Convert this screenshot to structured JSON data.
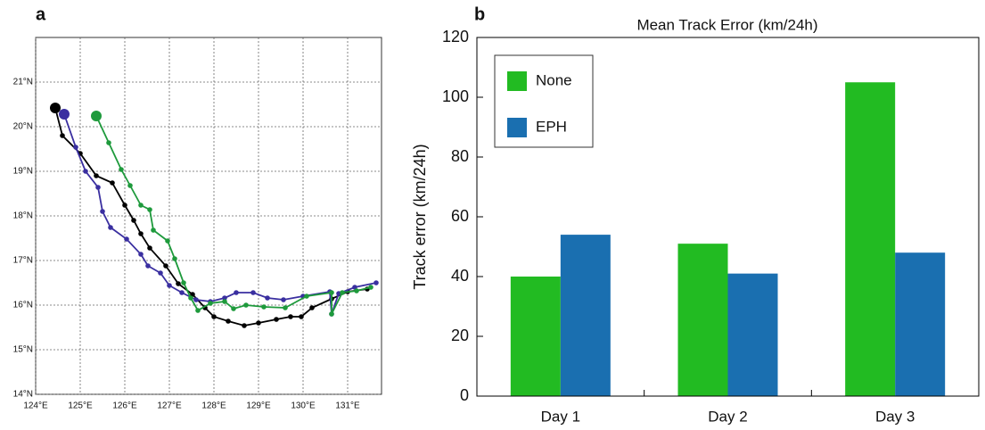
{
  "chart_data": [
    {
      "type": "line",
      "panel_label": "a",
      "xlim": [
        124,
        131.76
      ],
      "ylim": [
        14,
        22
      ],
      "grid": true,
      "xticks": [
        {
          "value": 124,
          "label": "124°E"
        },
        {
          "value": 125,
          "label": "125°E"
        },
        {
          "value": 126,
          "label": "126°E"
        },
        {
          "value": 127,
          "label": "127°E"
        },
        {
          "value": 128,
          "label": "128°E"
        },
        {
          "value": 129,
          "label": "129°E"
        },
        {
          "value": 130,
          "label": "130°E"
        },
        {
          "value": 131,
          "label": "131°E"
        }
      ],
      "yticks": [
        {
          "value": 14,
          "label": "14°N"
        },
        {
          "value": 15,
          "label": "15°N"
        },
        {
          "value": 16,
          "label": "16°N"
        },
        {
          "value": 17,
          "label": "17°N"
        },
        {
          "value": 18,
          "label": "18°N"
        },
        {
          "value": 19,
          "label": "19°N"
        },
        {
          "value": 20,
          "label": "20°N"
        },
        {
          "value": 21,
          "label": "21°N"
        }
      ],
      "series": [
        {
          "color": "#000000",
          "x": [
            124.44,
            124.6,
            125.0,
            125.36,
            125.72,
            126.0,
            126.2,
            126.36,
            126.56,
            126.92,
            127.2,
            127.52,
            127.8,
            128.0,
            128.32,
            128.68,
            129.0,
            129.4,
            129.72,
            129.96,
            130.2,
            130.64,
            131.0,
            131.44
          ],
          "values": [
            20.42,
            19.8,
            19.4,
            18.9,
            18.74,
            18.24,
            17.9,
            17.6,
            17.28,
            16.88,
            16.48,
            16.24,
            15.94,
            15.74,
            15.64,
            15.54,
            15.6,
            15.68,
            15.74,
            15.74,
            15.94,
            16.14,
            16.3,
            16.36
          ]
        },
        {
          "color": "#3a2fa0",
          "x": [
            124.64,
            124.9,
            125.12,
            125.4,
            125.5,
            125.68,
            126.04,
            126.36,
            126.52,
            126.8,
            127.0,
            127.28,
            127.6,
            127.92,
            128.24,
            128.5,
            128.88,
            129.2,
            129.56,
            130.0,
            130.6,
            130.64,
            130.8,
            131.16,
            131.64
          ],
          "values": [
            20.28,
            19.54,
            19.0,
            18.64,
            18.1,
            17.74,
            17.48,
            17.14,
            16.88,
            16.72,
            16.44,
            16.28,
            16.12,
            16.08,
            16.16,
            16.28,
            16.28,
            16.16,
            16.12,
            16.2,
            16.3,
            15.8,
            16.26,
            16.4,
            16.5
          ]
        },
        {
          "color": "#1e9a3c",
          "x": [
            125.36,
            125.64,
            125.92,
            126.12,
            126.36,
            126.56,
            126.64,
            126.96,
            127.12,
            127.32,
            127.48,
            127.64,
            127.92,
            128.24,
            128.44,
            128.72,
            129.12,
            129.6,
            130.08,
            130.64,
            130.64,
            130.88,
            131.2,
            131.52
          ],
          "values": [
            20.24,
            19.64,
            19.04,
            18.68,
            18.24,
            18.14,
            17.68,
            17.44,
            17.04,
            16.5,
            16.16,
            15.88,
            16.04,
            16.08,
            15.92,
            16.0,
            15.96,
            15.94,
            16.2,
            16.28,
            15.8,
            16.28,
            16.32,
            16.4
          ]
        }
      ]
    },
    {
      "type": "bar",
      "panel_label": "b",
      "title": "Mean Track Error (km/24h)",
      "y_label": "Track error (km/24h)",
      "categories": [
        "Day 1",
        "Day 2",
        "Day 3"
      ],
      "series": [
        {
          "name": "None",
          "color": "#22bb22",
          "values": [
            40,
            51,
            105
          ]
        },
        {
          "name": "EPH",
          "color": "#1a6fb0",
          "values": [
            54,
            41,
            48
          ]
        }
      ],
      "ylim": [
        0,
        120
      ],
      "yticks": [
        0,
        20,
        40,
        60,
        80,
        100,
        120
      ]
    }
  ]
}
